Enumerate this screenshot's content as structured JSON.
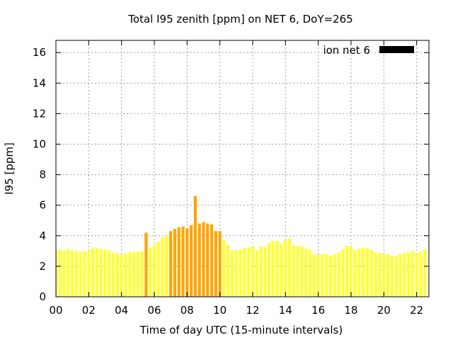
{
  "chart_data": {
    "type": "bar",
    "title": "Total I95 zenith [ppm] on NET 6, DoY=265",
    "xlabel": "Time of day UTC (15-minute intervals)",
    "ylabel": "I95 [ppm]",
    "ylim": [
      0,
      16.8
    ],
    "xlim": [
      0,
      22.75
    ],
    "yticks": [
      0,
      2,
      4,
      6,
      8,
      10,
      12,
      14,
      16
    ],
    "xticks": [
      {
        "value": 0,
        "label": "00"
      },
      {
        "value": 2,
        "label": "02"
      },
      {
        "value": 4,
        "label": "04"
      },
      {
        "value": 6,
        "label": "06"
      },
      {
        "value": 8,
        "label": "08"
      },
      {
        "value": 10,
        "label": "10"
      },
      {
        "value": 12,
        "label": "12"
      },
      {
        "value": 14,
        "label": "14"
      },
      {
        "value": 16,
        "label": "16"
      },
      {
        "value": 18,
        "label": "18"
      },
      {
        "value": 20,
        "label": "20"
      },
      {
        "value": 22,
        "label": "22"
      }
    ],
    "grid": true,
    "legend": {
      "position": "top-right",
      "label": "ion net 6",
      "color": "#000000"
    },
    "interval_hours": 0.25,
    "colors": {
      "low": "#ffff33",
      "high": "#ffa500"
    },
    "high_threshold": 4.0,
    "values": [
      3.1,
      3.1,
      3.0,
      3.15,
      3.05,
      3.0,
      2.95,
      3.0,
      3.0,
      3.2,
      3.2,
      3.1,
      3.1,
      3.05,
      2.9,
      2.85,
      2.75,
      2.85,
      2.95,
      2.95,
      2.95,
      3.0,
      4.2,
      3.2,
      3.4,
      3.6,
      3.9,
      4.0,
      4.3,
      4.45,
      4.55,
      4.6,
      4.5,
      4.7,
      6.6,
      4.8,
      4.9,
      4.8,
      4.75,
      4.3,
      4.3,
      3.7,
      3.4,
      3.05,
      3.05,
      3.1,
      3.2,
      3.25,
      3.3,
      3.05,
      3.3,
      3.25,
      3.55,
      3.65,
      3.65,
      3.5,
      3.75,
      3.8,
      3.35,
      3.35,
      3.3,
      3.15,
      3.1,
      2.8,
      2.75,
      2.8,
      2.8,
      2.7,
      2.8,
      2.9,
      3.1,
      3.35,
      3.3,
      3.05,
      3.15,
      3.2,
      3.15,
      3.1,
      2.9,
      2.9,
      2.8,
      2.8,
      2.7,
      2.65,
      2.8,
      2.9,
      2.95,
      3.0,
      2.9,
      2.95,
      3.1
    ]
  }
}
